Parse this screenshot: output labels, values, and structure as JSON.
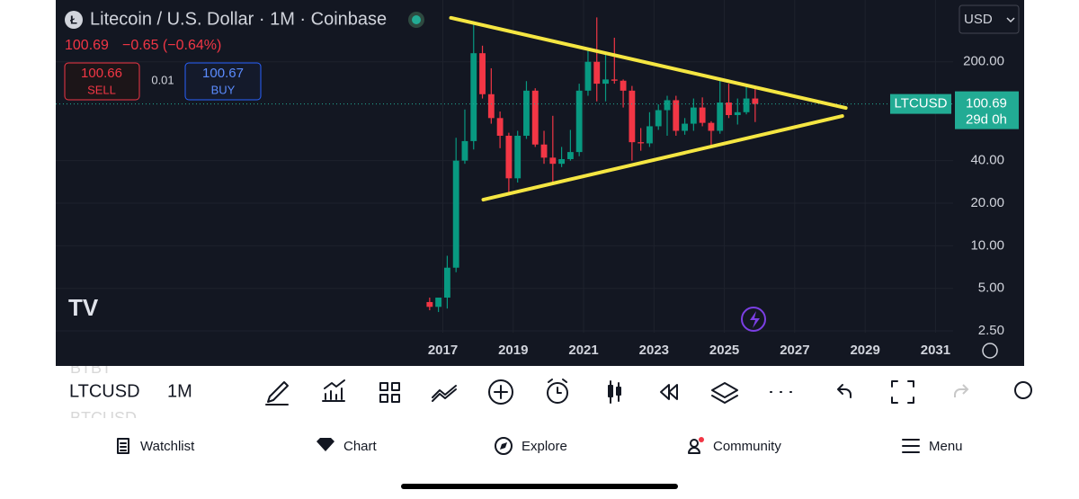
{
  "header": {
    "title": "Litecoin / U.S. Dollar · 1M · Coinbase",
    "price": "100.69",
    "change": "−0.65 (−0.64%)",
    "sell_price": "100.66",
    "sell_label": "SELL",
    "spread": "0.01",
    "buy_price": "100.67",
    "buy_label": "BUY",
    "currency": "USD"
  },
  "chart_data": {
    "type": "candlestick",
    "log_scale": true,
    "x": [
      2016.625,
      2016.875,
      2017.125,
      2017.375,
      2017.625,
      2017.875,
      2018.125,
      2018.375,
      2018.625,
      2018.875,
      2019.125,
      2019.375,
      2019.625,
      2019.875,
      2020.125,
      2020.375,
      2020.625,
      2020.875,
      2021.125,
      2021.375,
      2021.625,
      2021.875,
      2022.125,
      2022.375,
      2022.625,
      2022.875,
      2023.125,
      2023.375,
      2023.625,
      2023.875,
      2024.125,
      2024.375,
      2024.625,
      2024.875,
      2025.125,
      2025.375,
      2025.625,
      2025.875
    ],
    "open": [
      4.0,
      3.7,
      4.3,
      7.0,
      40,
      55,
      230,
      118,
      80,
      60,
      30,
      60,
      125,
      52,
      42,
      38,
      41,
      46,
      125,
      200,
      140,
      150,
      147,
      125,
      54,
      53,
      70,
      91,
      107,
      65,
      73,
      95,
      74,
      65,
      103,
      84,
      88,
      110
    ],
    "high": [
      4.3,
      4.3,
      8.5,
      58,
      92,
      370,
      260,
      180,
      89,
      63,
      65,
      146,
      130,
      65,
      83,
      50,
      66,
      140,
      240,
      412,
      230,
      296,
      150,
      135,
      68,
      88,
      100,
      115,
      115,
      80,
      110,
      112,
      76,
      147,
      140,
      110,
      136,
      130
    ],
    "low": [
      3.5,
      3.4,
      3.6,
      6.5,
      38,
      48,
      110,
      73,
      49,
      23,
      28,
      57,
      50,
      38,
      28,
      36,
      40,
      43,
      115,
      105,
      105,
      140,
      95,
      40,
      47,
      50,
      66,
      60,
      60,
      61,
      65,
      70,
      50,
      62,
      80,
      72,
      85,
      75
    ],
    "close": [
      3.7,
      4.3,
      7.0,
      40,
      55,
      230,
      118,
      80,
      60,
      30,
      60,
      125,
      52,
      42,
      38,
      41,
      46,
      125,
      200,
      140,
      150,
      147,
      125,
      54,
      53,
      70,
      91,
      107,
      65,
      73,
      95,
      74,
      65,
      103,
      84,
      88,
      110,
      100.69
    ],
    "up_color": "#089981",
    "down_color": "#f23645",
    "xlim": [
      2006,
      2031.5
    ],
    "xticks": [
      2017,
      2019,
      2021,
      2023,
      2025,
      2027,
      2029,
      2031
    ],
    "ylim": [
      2.43,
      547
    ],
    "yticks": [
      {
        "value": 2.5,
        "label": "2.50"
      },
      {
        "value": 5,
        "label": "5.00"
      },
      {
        "value": 10,
        "label": "10.00"
      },
      {
        "value": 20,
        "label": "20.00"
      },
      {
        "value": 40,
        "label": "40.00"
      },
      {
        "value": 200,
        "label": "200.00"
      }
    ],
    "trendlines": [
      {
        "color": "#f5e642",
        "x": [
          2017.23,
          2028.45
        ],
        "y": [
          409,
          94.3
        ]
      },
      {
        "color": "#f5e642",
        "x": [
          2018.15,
          2028.35
        ],
        "y": [
          21.2,
          82.7
        ]
      }
    ],
    "last_price": 100.69,
    "symbol_label": "LTCUSD",
    "countdown": "29d 0h"
  },
  "toolbar": {
    "ghost_above": "BTBT",
    "symbol": "LTCUSD",
    "interval": "1M",
    "ghost_below": "BTCUSD"
  },
  "tabs": [
    "Watchlist",
    "Chart",
    "Explore",
    "Community",
    "Menu"
  ]
}
